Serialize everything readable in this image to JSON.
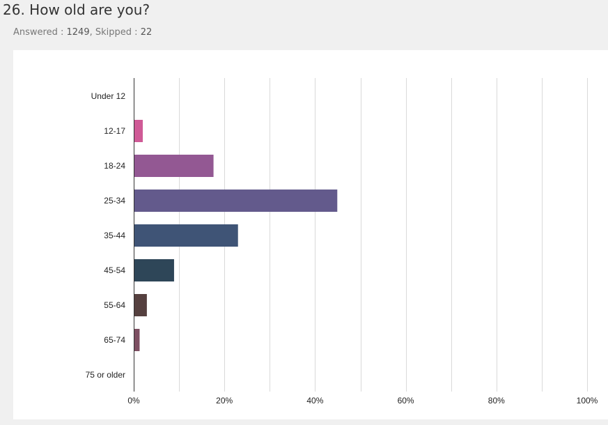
{
  "question": {
    "title": "26. How old are you?",
    "answered_label": "Answered :",
    "answered_value": "1249",
    "separator": ",",
    "skipped_label": "Skipped :",
    "skipped_value": "22"
  },
  "chart_data": {
    "type": "bar",
    "orientation": "horizontal",
    "categories": [
      "Under 12",
      "12-17",
      "18-24",
      "25-34",
      "35-44",
      "45-54",
      "55-64",
      "65-74",
      "75 or older"
    ],
    "values": [
      0.0,
      2.0,
      17.6,
      44.9,
      23.0,
      8.9,
      2.9,
      1.3,
      0.0
    ],
    "colors": [
      "#cf5a96",
      "#cf5a96",
      "#935893",
      "#635a8c",
      "#3f5476",
      "#2e4658",
      "#55403f",
      "#7d4f62",
      "#7d4f62"
    ],
    "xlim": [
      0,
      100
    ],
    "xticks": [
      "0%",
      "20%",
      "40%",
      "60%",
      "80%",
      "100%"
    ],
    "xtick_values": [
      0,
      20,
      40,
      60,
      80,
      100
    ],
    "grid_step": 10,
    "grid": true,
    "legend": "none"
  }
}
